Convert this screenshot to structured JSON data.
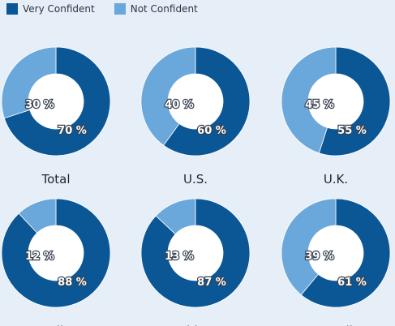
{
  "chart_data": {
    "type": "pie",
    "legend_position": "top-left",
    "series_names": [
      "Very Confident",
      "Not Confident"
    ],
    "colors": {
      "very_confident": "#0b5694",
      "not_confident": "#6aa7da"
    },
    "charts": [
      {
        "label": "Total",
        "very_confident": 70,
        "not_confident": 30,
        "very_label": "70 %",
        "not_label": "30 %"
      },
      {
        "label": "U.S.",
        "very_confident": 60,
        "not_confident": 40,
        "very_label": "60 %",
        "not_label": "40 %"
      },
      {
        "label": "U.K.",
        "very_confident": 55,
        "not_confident": 45,
        "very_label": "55 %",
        "not_label": "45 %"
      },
      {
        "label": "India",
        "very_confident": 88,
        "not_confident": 12,
        "very_label": "88 %",
        "not_label": "12 %"
      },
      {
        "label": "China",
        "very_confident": 87,
        "not_confident": 13,
        "very_label": "87 %",
        "not_label": "13 %"
      },
      {
        "label": "Brazil",
        "very_confident": 61,
        "not_confident": 39,
        "very_label": "61 %",
        "not_label": "39 %"
      }
    ]
  }
}
